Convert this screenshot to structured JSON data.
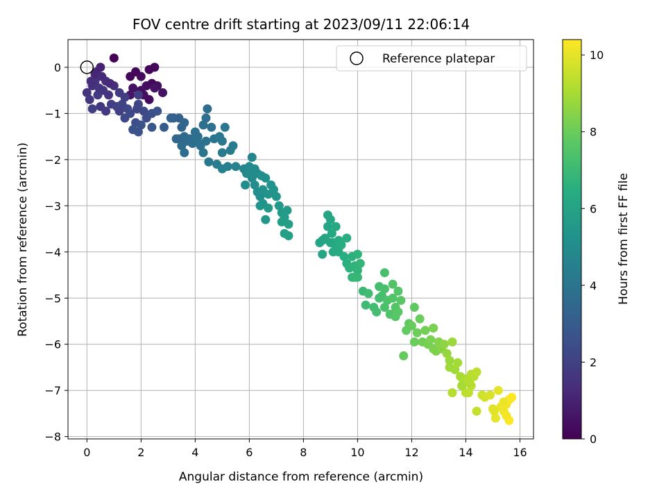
{
  "chart_data": {
    "type": "scatter",
    "title": "FOV centre drift starting at 2023/09/11 22:06:14",
    "xlabel": "Angular distance from reference (arcmin)",
    "ylabel": "Rotation from reference (arcmin)",
    "xlim": [
      -0.7,
      16.5
    ],
    "ylim": [
      -8.05,
      0.6
    ],
    "xticks": [
      "0",
      "2",
      "4",
      "6",
      "8",
      "10",
      "12",
      "14",
      "16"
    ],
    "yticks": [
      "0",
      "−1",
      "−2",
      "−3",
      "−4",
      "−5",
      "−6",
      "−7",
      "−8"
    ],
    "grid": true,
    "legend": {
      "position": "top-right",
      "entries": [
        "Reference platepar"
      ]
    },
    "reference_point": {
      "x": 0,
      "y": 0
    },
    "colorbar": {
      "label": "Hours from first FF file",
      "range": [
        0,
        10.4
      ],
      "ticks": [
        "0",
        "2",
        "4",
        "6",
        "8",
        "10"
      ],
      "colormap": "viridis"
    },
    "series": [
      {
        "points": [
          [
            1.0,
            0.2,
            0.1
          ],
          [
            1.6,
            -0.2,
            0.2
          ],
          [
            1.8,
            -0.1,
            0.15
          ],
          [
            2.0,
            -0.2,
            0.3
          ],
          [
            2.3,
            -0.05,
            0.1
          ],
          [
            2.5,
            0.0,
            0.2
          ],
          [
            2.2,
            -0.4,
            0.35
          ],
          [
            2.6,
            -0.4,
            0.4
          ],
          [
            2.8,
            -0.55,
            0.5
          ],
          [
            2.3,
            -0.7,
            0.3
          ],
          [
            2.0,
            -0.5,
            0.4
          ],
          [
            1.7,
            -0.45,
            0.5
          ],
          [
            1.6,
            -0.6,
            0.6
          ],
          [
            2.1,
            -0.6,
            0.45
          ],
          [
            2.4,
            -0.35,
            0.25
          ],
          [
            2.5,
            -0.45,
            0.55
          ],
          [
            0.0,
            -0.55,
            1.5
          ],
          [
            0.1,
            -0.7,
            1.6
          ],
          [
            0.2,
            -0.4,
            1.4
          ],
          [
            0.3,
            -0.3,
            1.5
          ],
          [
            0.35,
            -0.1,
            1.2
          ],
          [
            0.5,
            0.0,
            1.0
          ],
          [
            0.7,
            -0.3,
            1.3
          ],
          [
            0.6,
            -0.5,
            1.6
          ],
          [
            0.4,
            -0.6,
            1.8
          ],
          [
            0.2,
            -0.9,
            1.9
          ],
          [
            0.5,
            -0.85,
            1.7
          ],
          [
            0.7,
            -0.95,
            1.75
          ],
          [
            0.8,
            -0.6,
            1.5
          ],
          [
            0.9,
            -0.8,
            1.9
          ],
          [
            1.1,
            -0.85,
            2.0
          ],
          [
            1.3,
            -0.8,
            2.1
          ],
          [
            1.2,
            -0.55,
            1.8
          ],
          [
            1.4,
            -0.65,
            1.9
          ],
          [
            1.0,
            -0.4,
            1.4
          ],
          [
            0.85,
            -0.35,
            1.25
          ],
          [
            1.5,
            -0.9,
            2.2
          ],
          [
            1.4,
            -1.1,
            2.3
          ],
          [
            1.6,
            -1.0,
            2.3
          ],
          [
            1.8,
            -1.2,
            2.5
          ],
          [
            1.9,
            -1.4,
            2.6
          ],
          [
            1.7,
            -1.35,
            2.55
          ],
          [
            1.9,
            -0.8,
            2.1
          ],
          [
            2.1,
            -0.95,
            2.25
          ],
          [
            2.2,
            -1.1,
            2.4
          ],
          [
            2.4,
            -1.0,
            2.5
          ],
          [
            2.6,
            -0.95,
            2.6
          ],
          [
            2.0,
            -1.25,
            2.7
          ],
          [
            2.4,
            -1.3,
            2.8
          ],
          [
            1.2,
            -0.95,
            2.0
          ],
          [
            0.3,
            -0.15,
            1.1
          ],
          [
            0.15,
            -0.3,
            1.35
          ],
          [
            0.45,
            -0.45,
            1.55
          ],
          [
            0.55,
            -0.2,
            1.2
          ],
          [
            1.9,
            -0.6,
            1.9
          ],
          [
            1.85,
            -0.9,
            2.15
          ],
          [
            2.85,
            -1.3,
            3.0
          ],
          [
            3.2,
            -1.1,
            3.1
          ],
          [
            3.4,
            -1.1,
            3.2
          ],
          [
            3.5,
            -1.3,
            3.3
          ],
          [
            3.4,
            -1.55,
            3.4
          ],
          [
            3.6,
            -1.5,
            3.5
          ],
          [
            3.5,
            -1.7,
            3.6
          ],
          [
            3.6,
            -1.85,
            3.7
          ],
          [
            3.7,
            -1.6,
            3.6
          ],
          [
            3.9,
            -1.65,
            3.7
          ],
          [
            3.8,
            -1.55,
            3.65
          ],
          [
            4.0,
            -1.4,
            3.75
          ],
          [
            4.1,
            -1.5,
            3.8
          ],
          [
            4.2,
            -1.7,
            3.9
          ],
          [
            4.3,
            -1.85,
            3.95
          ],
          [
            4.4,
            -1.6,
            3.9
          ],
          [
            4.3,
            -1.25,
            3.8
          ],
          [
            4.4,
            -1.1,
            3.75
          ],
          [
            4.45,
            -0.9,
            3.7
          ],
          [
            4.6,
            -1.3,
            3.85
          ],
          [
            4.7,
            -1.55,
            4.0
          ],
          [
            4.9,
            -1.5,
            4.1
          ],
          [
            5.0,
            -1.6,
            4.15
          ],
          [
            5.1,
            -1.3,
            4.1
          ],
          [
            4.5,
            -2.05,
            4.2
          ],
          [
            4.8,
            -2.1,
            4.3
          ],
          [
            5.0,
            -1.85,
            4.25
          ],
          [
            5.3,
            -1.8,
            4.35
          ],
          [
            5.4,
            -1.7,
            4.3
          ],
          [
            5.2,
            -2.15,
            4.45
          ],
          [
            5.0,
            -2.2,
            4.5
          ],
          [
            5.5,
            -2.15,
            4.55
          ],
          [
            3.6,
            -1.2,
            3.4
          ],
          [
            3.3,
            -1.55,
            3.45
          ],
          [
            3.1,
            -1.1,
            3.25
          ],
          [
            4.15,
            -1.65,
            3.85
          ],
          [
            5.8,
            -2.2,
            4.7
          ],
          [
            5.9,
            -2.3,
            4.8
          ],
          [
            6.0,
            -2.15,
            4.85
          ],
          [
            6.1,
            -1.95,
            4.8
          ],
          [
            6.2,
            -2.2,
            4.9
          ],
          [
            6.3,
            -2.3,
            5.0
          ],
          [
            6.1,
            -2.4,
            4.95
          ],
          [
            6.2,
            -2.55,
            5.05
          ],
          [
            5.85,
            -2.55,
            5.0
          ],
          [
            6.3,
            -2.7,
            5.1
          ],
          [
            6.4,
            -2.8,
            5.15
          ],
          [
            6.5,
            -2.65,
            5.2
          ],
          [
            6.6,
            -2.4,
            5.2
          ],
          [
            6.8,
            -2.55,
            5.3
          ],
          [
            6.7,
            -2.75,
            5.3
          ],
          [
            6.9,
            -2.65,
            5.35
          ],
          [
            7.0,
            -2.8,
            5.4
          ],
          [
            6.5,
            -2.95,
            5.35
          ],
          [
            6.4,
            -3.0,
            5.4
          ],
          [
            6.7,
            -3.05,
            5.5
          ],
          [
            7.1,
            -3.0,
            5.5
          ],
          [
            6.6,
            -3.3,
            5.45
          ],
          [
            7.2,
            -3.15,
            5.6
          ],
          [
            7.4,
            -3.1,
            5.65
          ],
          [
            7.3,
            -3.25,
            5.7
          ],
          [
            7.2,
            -3.35,
            5.75
          ],
          [
            7.45,
            -3.4,
            5.8
          ],
          [
            7.3,
            -3.6,
            5.8
          ],
          [
            7.45,
            -3.65,
            5.85
          ],
          [
            6.0,
            -2.3,
            4.9
          ],
          [
            6.2,
            -2.3,
            4.95
          ],
          [
            6.45,
            -2.35,
            5.1
          ],
          [
            8.6,
            -3.8,
            6.0
          ],
          [
            8.7,
            -4.05,
            6.05
          ],
          [
            8.8,
            -3.7,
            6.1
          ],
          [
            8.9,
            -3.45,
            6.1
          ],
          [
            8.9,
            -3.2,
            6.05
          ],
          [
            9.0,
            -3.3,
            6.15
          ],
          [
            9.05,
            -3.6,
            6.2
          ],
          [
            9.2,
            -3.45,
            6.25
          ],
          [
            9.1,
            -3.8,
            6.3
          ],
          [
            9.2,
            -3.9,
            6.35
          ],
          [
            9.3,
            -3.75,
            6.4
          ],
          [
            9.4,
            -3.85,
            6.45
          ],
          [
            9.5,
            -4.1,
            6.5
          ],
          [
            9.6,
            -3.7,
            6.5
          ],
          [
            9.6,
            -4.25,
            6.55
          ],
          [
            9.8,
            -4.1,
            6.6
          ],
          [
            9.7,
            -4.35,
            6.65
          ],
          [
            9.9,
            -4.3,
            6.7
          ],
          [
            10.0,
            -4.05,
            6.7
          ],
          [
            10.0,
            -4.4,
            6.75
          ],
          [
            9.8,
            -4.55,
            6.8
          ],
          [
            10.0,
            -4.55,
            6.85
          ],
          [
            10.1,
            -4.25,
            6.8
          ],
          [
            9.9,
            -4.55,
            6.9
          ],
          [
            8.7,
            -3.75,
            6.0
          ],
          [
            9.0,
            -3.8,
            6.15
          ],
          [
            9.3,
            -4.0,
            6.35
          ],
          [
            9.1,
            -4.0,
            6.3
          ],
          [
            10.2,
            -4.85,
            7.0
          ],
          [
            10.3,
            -5.15,
            7.05
          ],
          [
            10.4,
            -4.9,
            7.1
          ],
          [
            10.6,
            -5.2,
            7.15
          ],
          [
            10.7,
            -5.3,
            7.2
          ],
          [
            10.8,
            -4.75,
            7.2
          ],
          [
            10.9,
            -4.95,
            7.25
          ],
          [
            11.0,
            -4.45,
            7.3
          ],
          [
            11.0,
            -4.8,
            7.3
          ],
          [
            11.0,
            -5.2,
            7.35
          ],
          [
            11.1,
            -5.05,
            7.4
          ],
          [
            11.2,
            -5.35,
            7.45
          ],
          [
            11.3,
            -4.7,
            7.5
          ],
          [
            11.3,
            -5.0,
            7.5
          ],
          [
            11.4,
            -5.2,
            7.55
          ],
          [
            11.4,
            -5.4,
            7.6
          ],
          [
            11.5,
            -5.3,
            7.65
          ],
          [
            11.6,
            -5.05,
            7.65
          ],
          [
            11.5,
            -4.85,
            7.55
          ],
          [
            10.8,
            -5.0,
            7.25
          ],
          [
            12.1,
            -5.2,
            7.8
          ],
          [
            11.9,
            -5.55,
            7.8
          ],
          [
            11.8,
            -5.7,
            7.85
          ],
          [
            11.7,
            -6.25,
            7.9
          ],
          [
            12.0,
            -5.6,
            7.95
          ],
          [
            12.1,
            -5.95,
            8.0
          ],
          [
            12.2,
            -5.75,
            8.05
          ],
          [
            12.3,
            -5.45,
            8.0
          ],
          [
            12.4,
            -5.95,
            8.1
          ],
          [
            12.5,
            -5.7,
            8.15
          ],
          [
            12.6,
            -6.0,
            8.2
          ],
          [
            12.7,
            -5.9,
            8.25
          ],
          [
            12.8,
            -6.1,
            8.3
          ],
          [
            12.8,
            -5.65,
            8.25
          ],
          [
            12.9,
            -6.15,
            8.35
          ],
          [
            13.0,
            -5.95,
            8.4
          ],
          [
            13.1,
            -6.1,
            8.45
          ],
          [
            13.2,
            -6.0,
            8.6
          ],
          [
            13.3,
            -6.2,
            8.7
          ],
          [
            13.4,
            -6.35,
            8.8
          ],
          [
            13.5,
            -5.95,
            8.8
          ],
          [
            13.4,
            -6.5,
            8.85
          ],
          [
            13.6,
            -6.55,
            8.9
          ],
          [
            13.7,
            -6.4,
            8.95
          ],
          [
            13.8,
            -6.7,
            9.0
          ],
          [
            13.9,
            -6.85,
            9.1
          ],
          [
            14.0,
            -6.75,
            9.1
          ],
          [
            14.1,
            -6.8,
            9.2
          ],
          [
            14.2,
            -6.65,
            9.25
          ],
          [
            14.3,
            -6.7,
            9.3
          ],
          [
            14.4,
            -6.6,
            9.35
          ],
          [
            14.0,
            -7.05,
            9.3
          ],
          [
            14.1,
            -7.05,
            9.35
          ],
          [
            14.2,
            -6.9,
            9.4
          ],
          [
            13.5,
            -7.05,
            9.2
          ],
          [
            14.4,
            -7.45,
            9.5
          ],
          [
            14.6,
            -7.1,
            9.6
          ],
          [
            14.7,
            -7.15,
            9.7
          ],
          [
            14.9,
            -7.1,
            9.8
          ],
          [
            15.0,
            -7.4,
            9.9
          ],
          [
            15.1,
            -7.6,
            10.0
          ],
          [
            15.2,
            -7.0,
            10.0
          ],
          [
            15.3,
            -7.35,
            10.1
          ],
          [
            15.4,
            -7.45,
            10.15
          ],
          [
            15.5,
            -7.3,
            10.2
          ],
          [
            15.6,
            -7.2,
            10.3
          ],
          [
            15.6,
            -7.65,
            10.35
          ],
          [
            15.7,
            -7.15,
            10.4
          ],
          [
            15.05,
            -7.45,
            9.95
          ],
          [
            15.4,
            -7.25,
            10.1
          ],
          [
            15.5,
            -7.55,
            10.25
          ],
          [
            13.85,
            -6.9,
            9.0
          ],
          [
            14.15,
            -6.85,
            9.2
          ]
        ]
      }
    ]
  }
}
